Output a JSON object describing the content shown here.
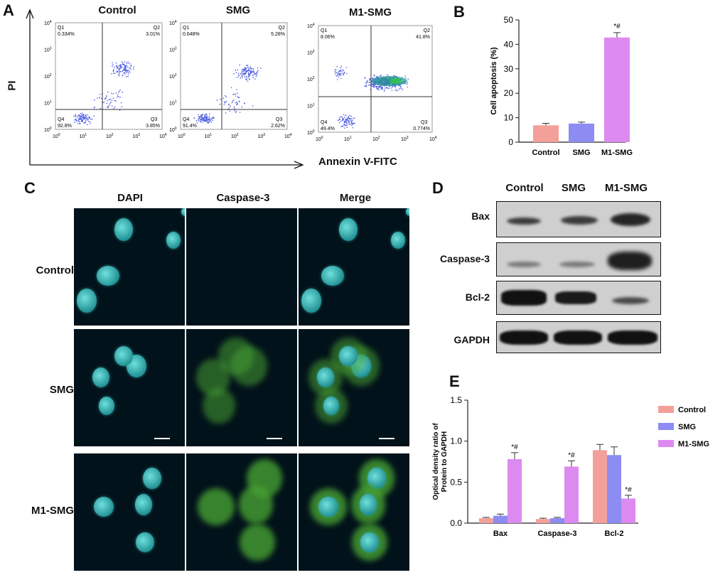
{
  "panel_labels": {
    "a": "A",
    "b": "B",
    "c": "C",
    "d": "D",
    "e": "E"
  },
  "flow": {
    "y_axis_label": "PI",
    "x_axis_label": "Annexin V-FITC",
    "plots": [
      {
        "title": "Control",
        "q1_name": "Q1",
        "q1": "0.334%",
        "q2_name": "Q2",
        "q2": "3.01%",
        "q3_name": "Q3",
        "q3": "3.85%",
        "q4_name": "Q4",
        "q4": "92.8%"
      },
      {
        "title": "SMG",
        "q1_name": "Q1",
        "q1": "0.648%",
        "q2_name": "Q2",
        "q2": "5.28%",
        "q3_name": "Q3",
        "q3": "2.62%",
        "q4_name": "Q4",
        "q4": "91.4%"
      },
      {
        "title": "M1-SMG",
        "q1_name": "Q1",
        "q1": "8.06%",
        "q2_name": "Q2",
        "q2": "41.8%",
        "q3_name": "Q3",
        "q3": "0.774%",
        "q4_name": "Q4",
        "q4": "49.4%"
      }
    ],
    "tick_labels": [
      "10^0",
      "10^1",
      "10^2",
      "10^3",
      "10^4"
    ]
  },
  "microscopy": {
    "columns": [
      "DAPI",
      "Caspase-3",
      "Merge"
    ],
    "rows": [
      "Control",
      "SMG",
      "M1-SMG"
    ]
  },
  "western": {
    "columns": [
      "Control",
      "SMG",
      "M1-SMG"
    ],
    "rows": [
      "Bax",
      "Caspase-3",
      "Bcl-2",
      "GAPDH"
    ],
    "colors": {
      "band": "#1a1a1a",
      "background": "#cfcfcf"
    }
  },
  "chart_data": [
    {
      "type": "bar",
      "categories": [
        "Control",
        "SMG",
        "M1-SMG"
      ],
      "values": [
        6.9,
        7.6,
        42.8
      ],
      "errors": [
        0.8,
        0.6,
        2.0
      ],
      "colors": [
        "#f4a09a",
        "#8c8cf2",
        "#dd8af0"
      ],
      "annotations": [
        "",
        "",
        "*#"
      ],
      "title": "",
      "xlabel": "",
      "ylabel": "Cell apoptosis (%)",
      "ylim": [
        0,
        50
      ],
      "yticks": [
        "0",
        "10",
        "20",
        "30",
        "40",
        "50"
      ],
      "grid": false
    },
    {
      "type": "bar",
      "categories": [
        "Bax",
        "Caspase-3",
        "Bcl-2"
      ],
      "series": [
        {
          "name": "Control",
          "color": "#f4a09a",
          "values": [
            0.06,
            0.05,
            0.89
          ],
          "errors": [
            0.01,
            0.01,
            0.07
          ]
        },
        {
          "name": "SMG",
          "color": "#8c8cf2",
          "values": [
            0.09,
            0.06,
            0.83
          ],
          "errors": [
            0.02,
            0.01,
            0.1
          ]
        },
        {
          "name": "M1-SMG",
          "color": "#dd8af0",
          "values": [
            0.78,
            0.69,
            0.3
          ],
          "errors": [
            0.08,
            0.07,
            0.04
          ]
        }
      ],
      "annotations": [
        [
          "",
          "",
          "*#"
        ],
        [
          "",
          "",
          "*#"
        ],
        [
          "",
          "",
          "*#"
        ]
      ],
      "title": "",
      "xlabel": "",
      "ylabel": "Optical density ratio of Protein to GAPDH",
      "ylabel_lines": [
        "Optical density ratio of",
        "Protein to GAPDH"
      ],
      "ylim": [
        0,
        1.5
      ],
      "yticks": [
        "0.0",
        "0.5",
        "1.0",
        "1.5"
      ],
      "legend_position": "top-right",
      "grid": false
    }
  ]
}
